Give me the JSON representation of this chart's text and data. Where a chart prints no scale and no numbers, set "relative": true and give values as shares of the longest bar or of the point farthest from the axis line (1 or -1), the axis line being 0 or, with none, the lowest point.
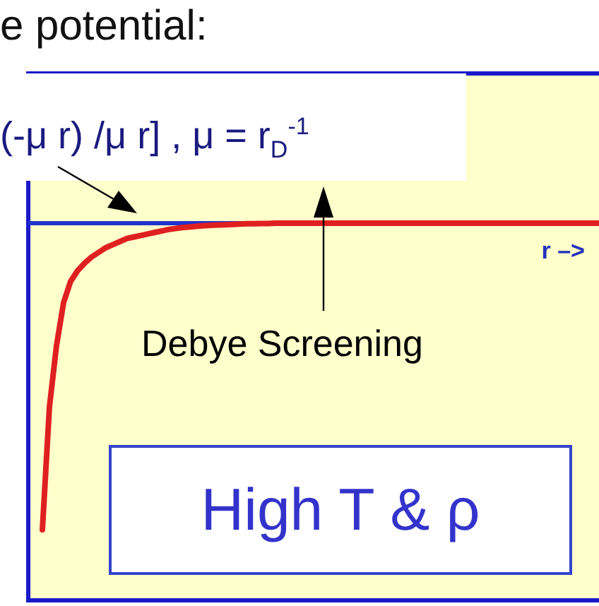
{
  "chart_data": {
    "type": "line",
    "title": "e potential:",
    "xlabel": "r –>",
    "relative": true,
    "marker": "none",
    "legend": false,
    "categories": [
      null,
      null,
      null,
      null,
      null,
      null,
      null,
      null,
      null,
      null,
      null,
      null,
      null,
      null,
      null,
      null,
      null,
      null,
      null,
      null,
      null,
      null,
      null,
      null,
      null,
      null,
      null,
      null,
      null,
      null,
      null,
      null,
      null,
      null,
      null,
      null,
      null,
      null,
      null,
      null,
      null,
      null,
      null,
      null,
      null,
      null,
      null,
      null,
      null,
      null,
      null,
      null,
      null,
      null,
      null,
      null,
      null,
      null,
      null,
      null,
      null,
      null,
      null,
      null,
      null,
      null,
      null,
      null,
      null,
      null,
      null,
      null,
      null,
      null,
      null,
      null,
      null,
      null,
      null,
      null
    ],
    "series": [
      {
        "color": "#e02020",
        "values": [
          -1,
          -0.6,
          -0.4,
          -0.26,
          -0.19,
          -0.155,
          -0.13,
          -0.11,
          -0.095,
          -0.08,
          -0.07,
          -0.06,
          -0.05,
          -0.045,
          -0.04,
          -0.035,
          -0.03,
          -0.025,
          -0.02,
          -0.017,
          -0.014,
          -0.012,
          -0.01,
          -0.008,
          -0.007,
          -0.006,
          -0.005,
          -0.004,
          -0.003,
          -0.002,
          -0.002,
          -0.001,
          -0.001,
          0,
          0,
          0,
          0,
          0,
          0,
          0,
          0,
          0,
          0,
          0,
          0,
          0,
          0,
          0,
          0,
          0,
          0,
          0,
          0,
          0,
          0,
          0,
          0,
          0,
          0,
          0,
          0,
          0,
          0,
          0,
          0,
          0,
          0,
          0,
          0,
          0,
          0,
          0,
          0,
          0,
          0,
          0,
          0,
          0,
          0,
          0
        ]
      }
    ],
    "annotations": [
      "(-μ r) /μ r] , μ  = r$_{D}$$^{-1}$",
      "Debye Screening",
      "High T & ρ"
    ]
  }
}
